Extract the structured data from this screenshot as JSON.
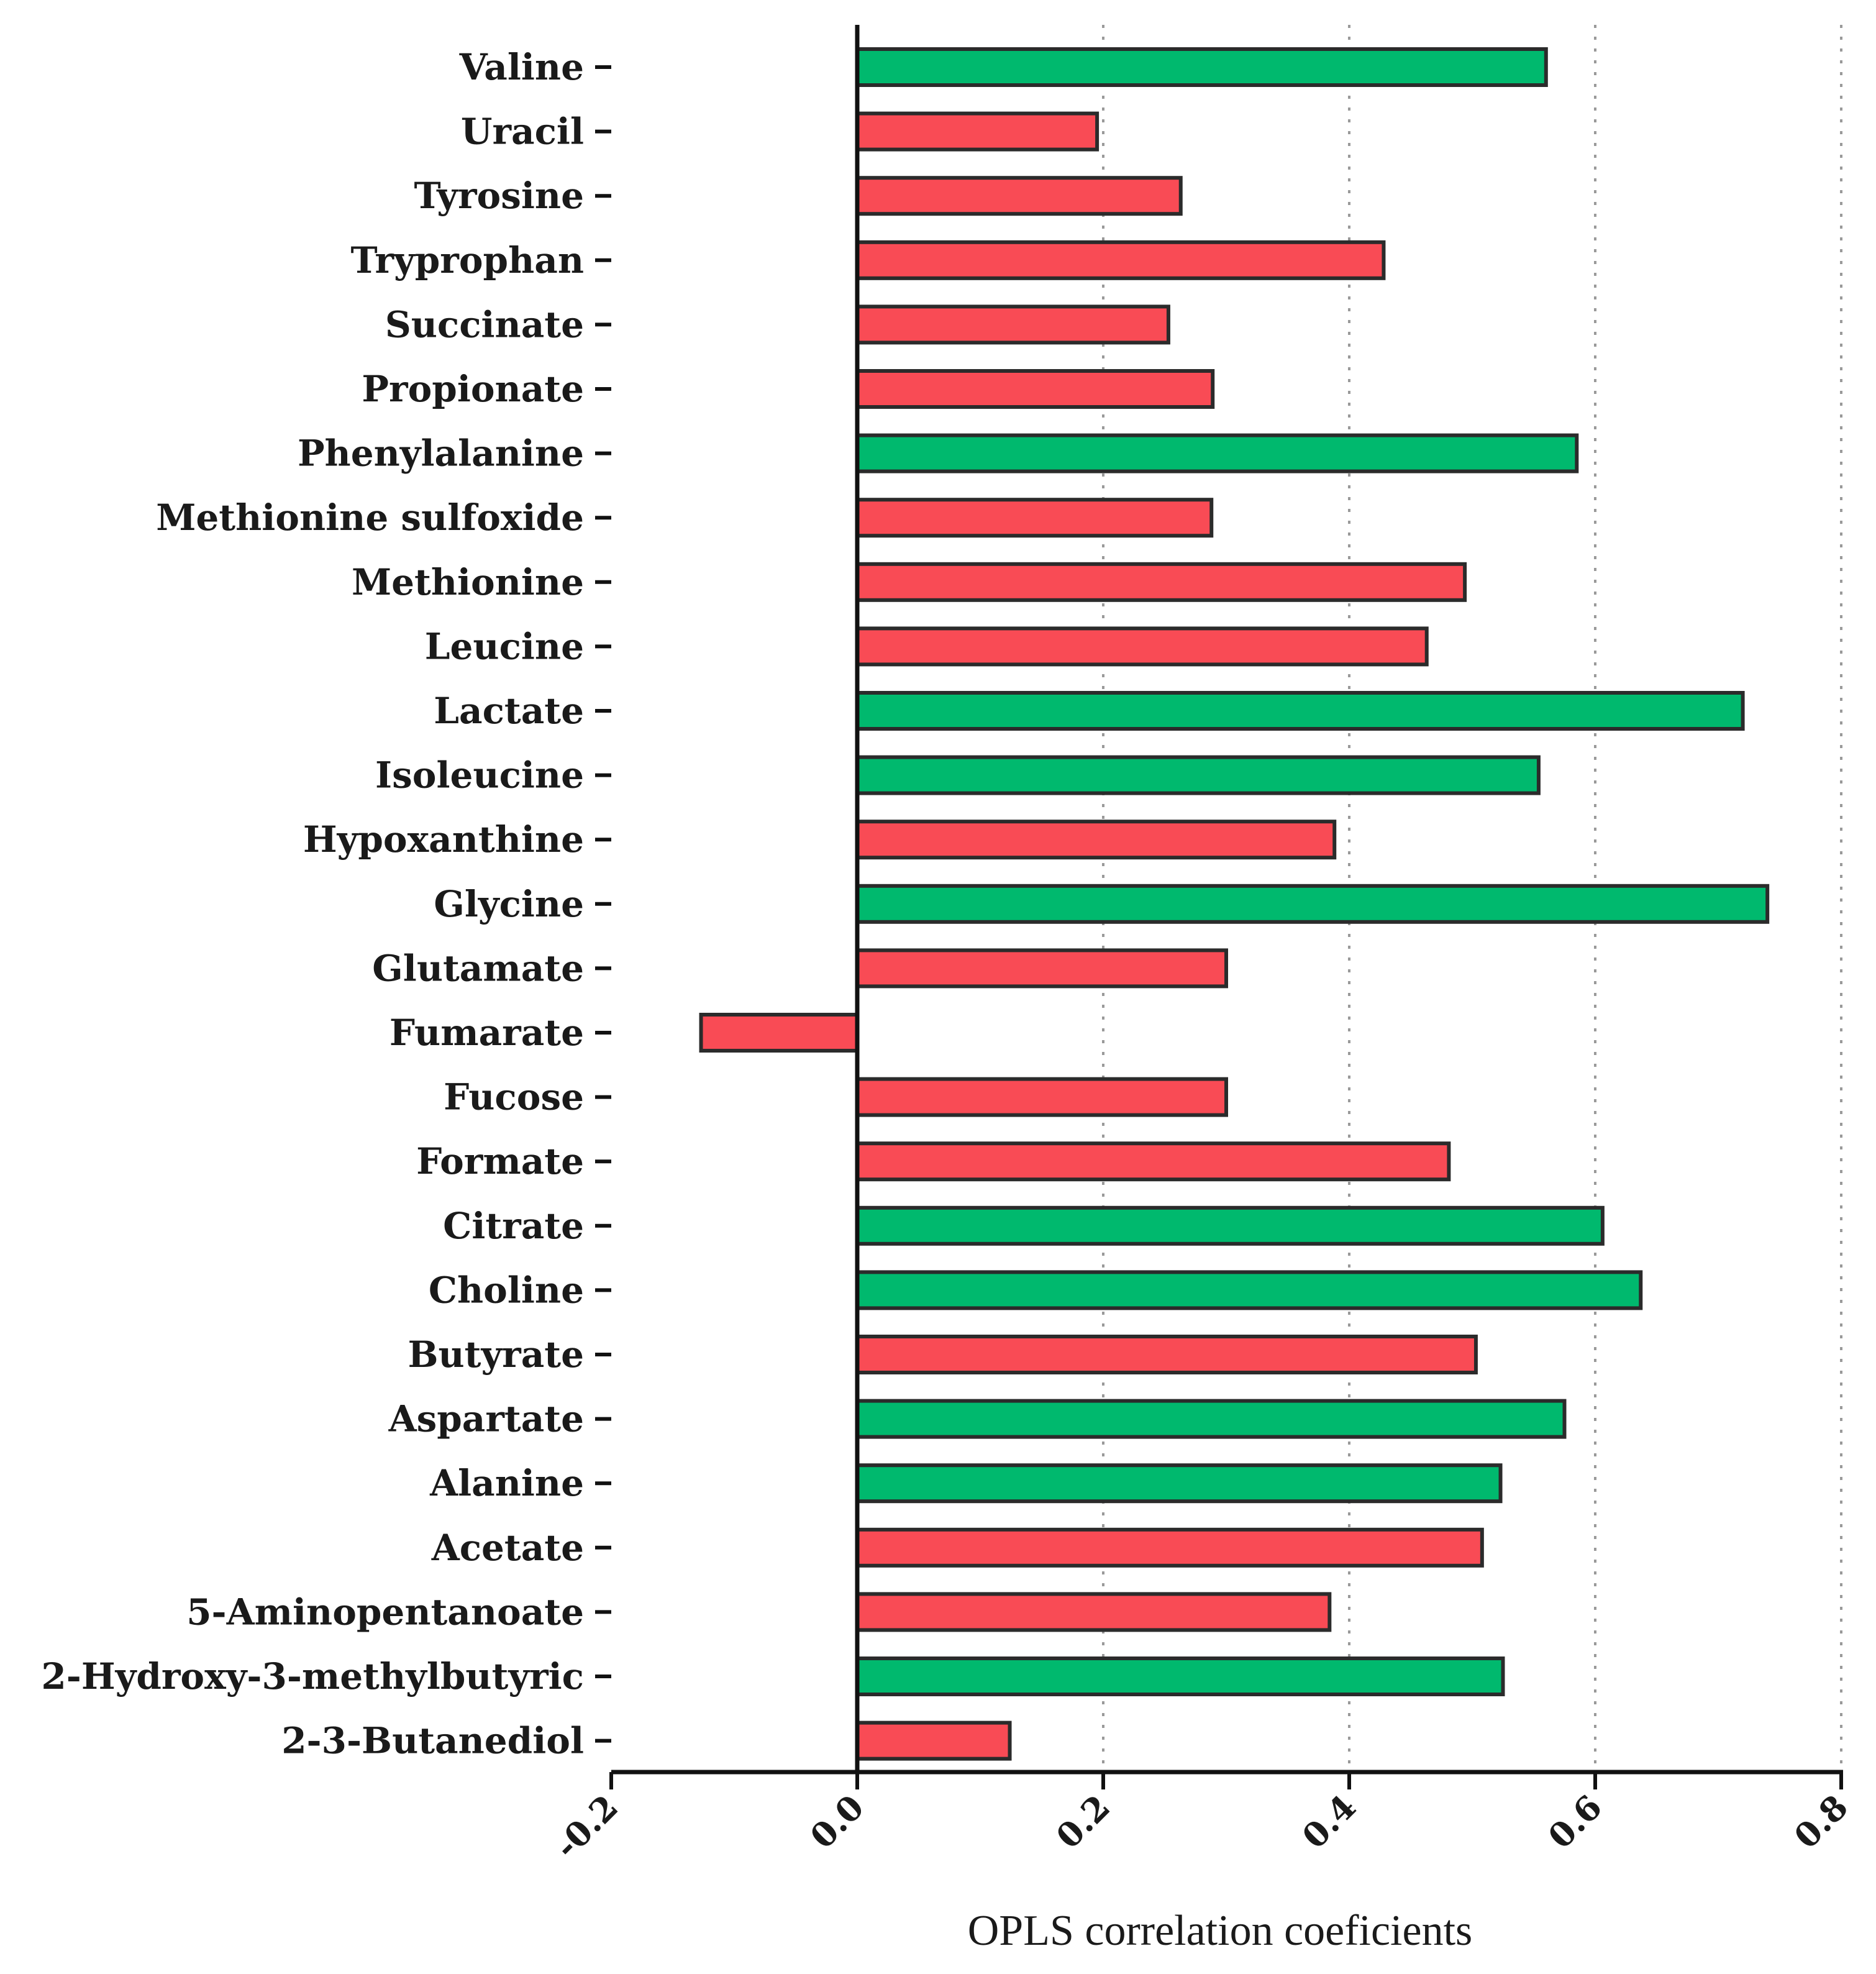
{
  "colors": {
    "positive": "#00b96e",
    "negative": "#f94b55"
  },
  "chart_data": {
    "type": "bar",
    "orientation": "horizontal",
    "title": "",
    "xlabel": "OPLS correlation coeficients",
    "ylabel": "",
    "xlim": [
      -0.2,
      0.8
    ],
    "xticks": [
      -0.2,
      0.0,
      0.2,
      0.4,
      0.6,
      0.8
    ],
    "xtick_labels": [
      "-0.2",
      "0.0",
      "0.2",
      "0.4",
      "0.6",
      "0.8"
    ],
    "grid": "vertical dotted at 0.2, 0.4, 0.6, 0.8",
    "categories": [
      "Valine",
      "Uracil",
      "Tyrosine",
      "Tryprophan",
      "Succinate",
      "Propionate",
      "Phenylalanine",
      "Methionine sulfoxide",
      "Methionine",
      "Leucine",
      "Lactate",
      "Isoleucine",
      "Hypoxanthine",
      "Glycine",
      "Glutamate",
      "Fumarate",
      "Fucose",
      "Formate",
      "Citrate",
      "Choline",
      "Butyrate",
      "Aspartate",
      "Alanine",
      "Acetate",
      "5-Aminopentanoate",
      "2-Hydroxy-3-methylbutyric",
      "2-3-Butanediol"
    ],
    "values": [
      0.56,
      0.195,
      0.263,
      0.428,
      0.253,
      0.289,
      0.585,
      0.288,
      0.494,
      0.463,
      0.72,
      0.554,
      0.388,
      0.74,
      0.3,
      -0.127,
      0.3,
      0.481,
      0.606,
      0.637,
      0.503,
      0.575,
      0.523,
      0.508,
      0.384,
      0.525,
      0.124
    ],
    "series_groups": [
      "positive",
      "negative",
      "negative",
      "negative",
      "negative",
      "negative",
      "positive",
      "negative",
      "negative",
      "negative",
      "positive",
      "positive",
      "negative",
      "positive",
      "negative",
      "negative",
      "negative",
      "negative",
      "positive",
      "positive",
      "negative",
      "positive",
      "positive",
      "negative",
      "negative",
      "positive",
      "negative"
    ]
  }
}
